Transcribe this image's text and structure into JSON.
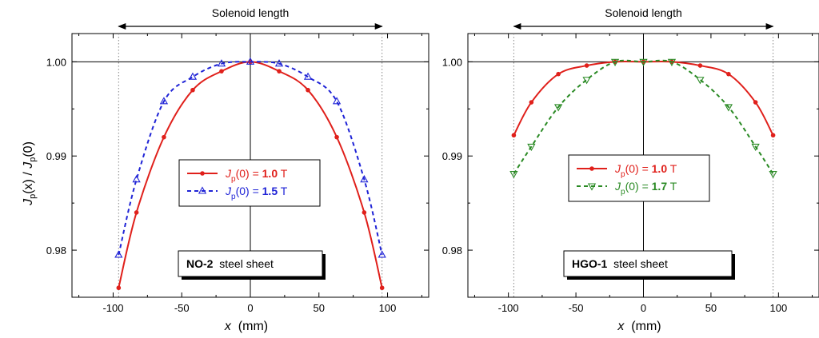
{
  "chart_data": [
    {
      "type": "line",
      "panel_label": "NO-2",
      "panel_suffix": "steel sheet",
      "span_label": "Solenoid length",
      "xlabel": "x",
      "xunit": "(mm)",
      "ylabel_main": "J",
      "ylabel_sub": "p",
      "ylabel_arg": "(x)",
      "ylabel_sep": " / ",
      "ylabel_den_main": "J",
      "ylabel_den_sub": "p",
      "ylabel_den_arg": "(0)",
      "xlim": [
        -130,
        130
      ],
      "ylim": [
        0.975,
        1.003
      ],
      "xticks": [
        "-100",
        "-50",
        "0",
        "50",
        "100"
      ],
      "yticks": [
        "0.98",
        "0.99",
        "1.00"
      ],
      "reference_y": 1.0,
      "reference_x": 0,
      "solenoid_ends": [
        -96,
        96
      ],
      "legend_position": "center",
      "series": [
        {
          "name_main": "J",
          "name_sub": "p",
          "name_arg": "(0) = ",
          "name_value": "1.0",
          "name_unit": " T",
          "color": "#e0201b",
          "marker": "circle",
          "line": "solid",
          "x": [
            -96,
            -83,
            -63,
            -42,
            -21,
            0,
            21,
            42,
            63,
            83,
            96
          ],
          "y": [
            0.976,
            0.984,
            0.992,
            0.997,
            0.999,
            1.0,
            0.999,
            0.997,
            0.992,
            0.984,
            0.976
          ]
        },
        {
          "name_main": "J",
          "name_sub": "p",
          "name_arg": "(0) = ",
          "name_value": "1.5",
          "name_unit": " T",
          "color": "#1f23d6",
          "marker": "triangle",
          "line": "dashed",
          "x": [
            -96,
            -83,
            -63,
            -42,
            -21,
            0,
            21,
            42,
            63,
            83,
            96
          ],
          "y": [
            0.9795,
            0.9875,
            0.9958,
            0.9984,
            0.9998,
            1.0,
            0.9998,
            0.9984,
            0.9958,
            0.9875,
            0.9795
          ]
        }
      ]
    },
    {
      "type": "line",
      "panel_label": "HGO-1",
      "panel_suffix": "steel sheet",
      "span_label": "Solenoid length",
      "xlabel": "x",
      "xunit": "(mm)",
      "xlim": [
        -130,
        130
      ],
      "ylim": [
        0.975,
        1.003
      ],
      "xticks": [
        "-100",
        "-50",
        "0",
        "50",
        "100"
      ],
      "yticks": [
        "0.98",
        "0.99",
        "1.00"
      ],
      "reference_y": 1.0,
      "reference_x": 0,
      "solenoid_ends": [
        -96,
        96
      ],
      "legend_position": "center",
      "series": [
        {
          "name_main": "J",
          "name_sub": "p",
          "name_arg": "(0) = ",
          "name_value": "1.0",
          "name_unit": " T",
          "color": "#e0201b",
          "marker": "circle",
          "line": "solid",
          "x": [
            -96,
            -83,
            -63,
            -42,
            -21,
            0,
            21,
            42,
            63,
            83,
            96
          ],
          "y": [
            0.9922,
            0.9957,
            0.9987,
            0.9996,
            1.0,
            1.0,
            1.0,
            0.9996,
            0.9987,
            0.9957,
            0.9922
          ]
        },
        {
          "name_main": "J",
          "name_sub": "p",
          "name_arg": "(0) = ",
          "name_value": "1.7",
          "name_unit": " T",
          "color": "#2a8a24",
          "marker": "triangle-down",
          "line": "dashed",
          "x": [
            -96,
            -83,
            -63,
            -42,
            -21,
            0,
            21,
            42,
            63,
            83,
            96
          ],
          "y": [
            0.9881,
            0.991,
            0.9952,
            0.9981,
            1.0,
            1.0,
            1.0,
            0.9981,
            0.9952,
            0.991,
            0.9881
          ]
        }
      ]
    }
  ]
}
